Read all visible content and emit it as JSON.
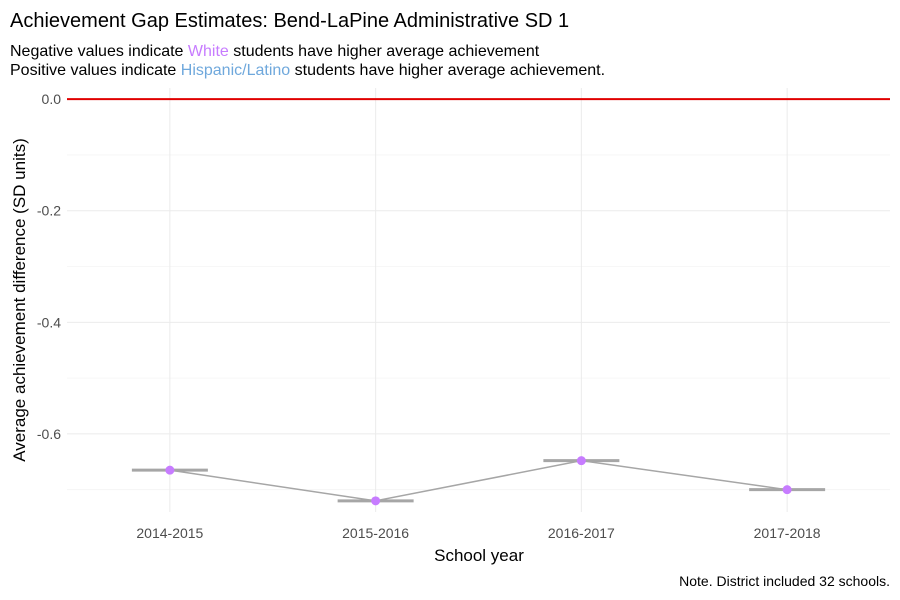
{
  "chart_data": {
    "type": "line",
    "title": "Achievement Gap Estimates: Bend-LaPine Administrative SD 1",
    "subtitle": {
      "line1": {
        "prefix": "Negative values indicate ",
        "highlight": "White",
        "highlight_color": "#c77cff",
        "suffix": " students have higher average achievement"
      },
      "line2": {
        "prefix": "Positive values indicate ",
        "highlight": "Hispanic/Latino",
        "highlight_color": "#6fa8dc",
        "suffix": " students have higher average achievement."
      }
    },
    "xlabel": "School year",
    "ylabel": "Average achievement difference (SD units)",
    "caption": "Note. District included 32 schools.",
    "categories": [
      "2014-2015",
      "2015-2016",
      "2016-2017",
      "2017-2018"
    ],
    "values": [
      -0.665,
      -0.72,
      -0.648,
      -0.7
    ],
    "ylim": [
      -0.74,
      0.02
    ],
    "yticks": [
      0.0,
      -0.2,
      -0.4,
      -0.6
    ],
    "ytick_labels": [
      "0.0",
      "-0.2",
      "-0.4",
      "-0.6"
    ],
    "reference_line": 0.0,
    "reference_color": "#e00000",
    "point_color": "#c77cff",
    "line_color": "#a6a6a6",
    "grid": true
  }
}
